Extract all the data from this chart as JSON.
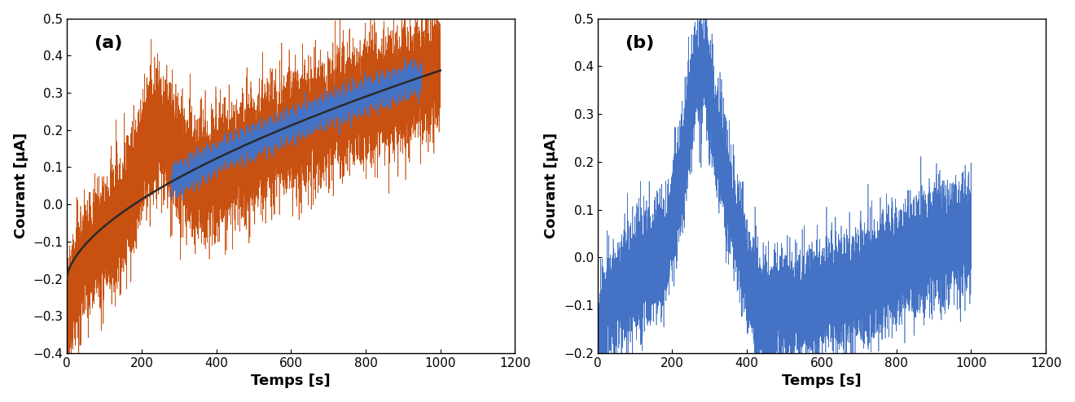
{
  "panel_a": {
    "label": "(a)",
    "xlim": [
      0,
      1200
    ],
    "ylim": [
      -0.4,
      0.5
    ],
    "xticks": [
      0,
      200,
      400,
      600,
      800,
      1000,
      1200
    ],
    "yticks": [
      -0.4,
      -0.3,
      -0.2,
      -0.1,
      0.0,
      0.1,
      0.2,
      0.3,
      0.4,
      0.5
    ],
    "xlabel": "Temps [s]",
    "ylabel": "Courant [μA]",
    "orange_color": "#C85010",
    "blue_color": "#4472C4",
    "black_color": "#2a2a2a"
  },
  "panel_b": {
    "label": "(b)",
    "xlim": [
      0,
      1200
    ],
    "ylim": [
      -0.2,
      0.5
    ],
    "xticks": [
      0,
      200,
      400,
      600,
      800,
      1000,
      1200
    ],
    "yticks": [
      -0.2,
      -0.1,
      0.0,
      0.1,
      0.2,
      0.3,
      0.4,
      0.5
    ],
    "xlabel": "Temps [s]",
    "ylabel": "Courant [μA]",
    "blue_color": "#4472C4"
  },
  "label_fontsize": 13,
  "tick_fontsize": 11,
  "panel_label_fontsize": 16
}
